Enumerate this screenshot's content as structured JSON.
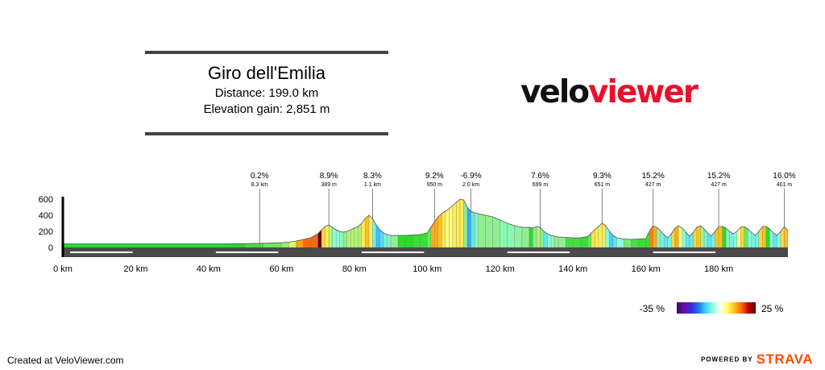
{
  "header": {
    "title": "Giro dell'Emilia",
    "distance": "Distance: 199.0 km",
    "elevation_gain": "Elevation gain: 2,851 m"
  },
  "logo": {
    "part1": "velo",
    "part2": "viewer"
  },
  "footer": {
    "credit": "Created at VeloViewer.com",
    "powered": "POWERED BY",
    "brand": "STRAVA"
  },
  "legend": {
    "min": "-35 %",
    "max": "25 %"
  },
  "chart_data": {
    "type": "area",
    "x_unit": "km",
    "y_unit": "m",
    "xlim": [
      0,
      199
    ],
    "ylim": [
      0,
      600
    ],
    "y_ticks": [
      "600",
      "400",
      "200",
      "0"
    ],
    "x_ticks": [
      "0 km",
      "20 km",
      "40 km",
      "60 km",
      "80 km",
      "100 km",
      "120 km",
      "140 km",
      "160 km",
      "180 km"
    ],
    "profile": {
      "x": [
        0,
        5,
        10,
        15,
        20,
        25,
        30,
        35,
        40,
        45,
        50,
        55,
        60,
        62,
        64,
        66,
        68,
        70,
        71,
        72,
        73,
        74,
        75,
        76,
        77,
        78,
        79,
        80,
        81,
        82,
        83,
        84,
        85,
        86,
        87,
        88,
        89,
        90,
        92,
        94,
        96,
        98,
        100,
        101,
        102,
        103,
        104,
        105,
        106,
        107,
        108,
        109,
        110,
        111,
        112,
        113,
        114,
        116,
        118,
        120,
        122,
        124,
        126,
        128,
        129,
        130,
        131,
        132,
        133,
        134,
        135,
        136,
        138,
        140,
        142,
        144,
        145,
        146,
        147,
        148,
        149,
        150,
        151,
        152,
        154,
        156,
        158,
        160,
        161,
        162,
        163,
        164,
        165,
        166,
        167,
        168,
        169,
        170,
        171,
        172,
        173,
        174,
        175,
        176,
        177,
        178,
        179,
        180,
        181,
        182,
        183,
        184,
        185,
        186,
        187,
        188,
        189,
        190,
        191,
        192,
        193,
        194,
        195,
        196,
        197,
        198,
        199
      ],
      "y": [
        45,
        45,
        45,
        45,
        45,
        45,
        45,
        45,
        45,
        45,
        47,
        52,
        60,
        65,
        80,
        100,
        120,
        170,
        220,
        260,
        280,
        250,
        220,
        200,
        190,
        200,
        220,
        240,
        260,
        300,
        360,
        400,
        360,
        280,
        220,
        180,
        160,
        150,
        150,
        150,
        155,
        160,
        180,
        250,
        320,
        380,
        420,
        450,
        480,
        520,
        560,
        600,
        590,
        500,
        450,
        430,
        420,
        400,
        380,
        340,
        300,
        270,
        250,
        250,
        240,
        260,
        250,
        200,
        170,
        150,
        140,
        130,
        125,
        120,
        118,
        135,
        180,
        220,
        260,
        300,
        270,
        200,
        150,
        120,
        105,
        100,
        105,
        110,
        200,
        270,
        250,
        210,
        160,
        120,
        170,
        240,
        270,
        240,
        190,
        140,
        190,
        250,
        270,
        230,
        180,
        140,
        200,
        260,
        260,
        240,
        200,
        170,
        200,
        250,
        260,
        230,
        190,
        150,
        200,
        260,
        260,
        230,
        180,
        150,
        200,
        260,
        210
      ],
      "gradient_pct": [
        0,
        0,
        0,
        0,
        0,
        0,
        0,
        0,
        0,
        0,
        0.4,
        1,
        1.6,
        2.5,
        7.5,
        10,
        10,
        25,
        5,
        4,
        2,
        -3,
        -3,
        -2,
        -1,
        2,
        2,
        2,
        2,
        4,
        6,
        4,
        -4,
        -8,
        -6,
        -4,
        -2,
        -1,
        0,
        0,
        0.25,
        0.25,
        1,
        7,
        7,
        6,
        4,
        3,
        3,
        4,
        4,
        4,
        -1,
        -9,
        -5,
        -2,
        -1,
        -1,
        -1,
        -2,
        -2,
        -1.5,
        -1,
        0,
        -1,
        2,
        -1,
        -5,
        -3,
        -2,
        -1,
        -1,
        -0.25,
        -0.25,
        -0.1,
        0.85,
        4.5,
        4,
        4,
        4,
        -3,
        -7,
        -5,
        -3,
        -0.75,
        -0.25,
        0.25,
        0.25,
        9,
        7,
        -2,
        -4,
        -5,
        -4,
        5,
        7,
        3,
        -3,
        -5,
        -5,
        5,
        6,
        2,
        -4,
        -5,
        -4,
        6,
        6,
        0,
        -2,
        -4,
        -3,
        3,
        5,
        1,
        -3,
        -4,
        -4,
        5,
        6,
        0,
        -3,
        -5,
        -3,
        5,
        6,
        -5
      ]
    },
    "climbs": [
      {
        "grade": "0.2%",
        "length": "8.3 km",
        "km": 54
      },
      {
        "grade": "8.9%",
        "length": "389 m",
        "km": 73
      },
      {
        "grade": "8.3%",
        "length": "1.1 km",
        "km": 85
      },
      {
        "grade": "9.2%",
        "length": "950 m",
        "km": 102
      },
      {
        "grade": "-6.9%",
        "length": "2.0 km",
        "km": 112
      },
      {
        "grade": "7.6%",
        "length": "699 m",
        "km": 131
      },
      {
        "grade": "9.3%",
        "length": "651 m",
        "km": 148
      },
      {
        "grade": "15.2%",
        "length": "427 m",
        "km": 162
      },
      {
        "grade": "15.2%",
        "length": "427 m",
        "km": 180
      },
      {
        "grade": "16.0%",
        "length": "401 m",
        "km": 198
      }
    ],
    "legend": {
      "min_pct": -35,
      "max_pct": 25
    }
  }
}
